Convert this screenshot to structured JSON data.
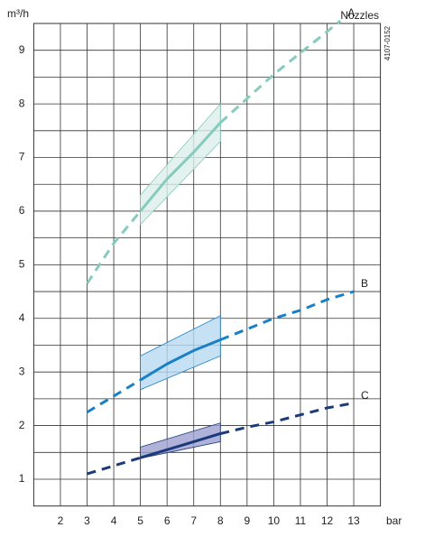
{
  "chart_data": {
    "type": "line",
    "y_label": "m³/h",
    "x_label": "bar",
    "legend_title": "Nozzles",
    "figure_id": "4107-0152",
    "xlim": [
      1,
      14
    ],
    "ylim": [
      0.5,
      9.5
    ],
    "xticks": [
      2,
      3,
      4,
      5,
      6,
      7,
      8,
      9,
      10,
      11,
      12,
      13
    ],
    "yticks": [
      1,
      2,
      3,
      4,
      5,
      6,
      7,
      8,
      9
    ],
    "y_minor_ticks": [
      1.5,
      2.5,
      3.5,
      4.5,
      5.5,
      6.5,
      7.5,
      8.5
    ],
    "grid": true,
    "series": [
      {
        "name": "A",
        "color": "#86cbbd",
        "band_fill": "#dcefea",
        "x": [
          3,
          4,
          5,
          6,
          7,
          8,
          9,
          10,
          11,
          12,
          12.5
        ],
        "values": [
          4.65,
          5.4,
          6.0,
          6.6,
          7.1,
          7.65,
          8.1,
          8.55,
          8.95,
          9.35,
          9.55
        ],
        "band_x": [
          5,
          8
        ],
        "band_lower": [
          5.75,
          7.3
        ],
        "band_upper": [
          6.3,
          8.0
        ]
      },
      {
        "name": "B",
        "color": "#1a80c6",
        "band_fill": "#b9d9f1",
        "x": [
          3,
          4,
          5,
          6,
          7,
          8,
          9,
          10,
          11,
          12,
          13
        ],
        "values": [
          2.25,
          2.55,
          2.85,
          3.15,
          3.4,
          3.6,
          3.8,
          4.0,
          4.15,
          4.35,
          4.5
        ],
        "band_x": [
          5,
          8
        ],
        "band_lower": [
          2.67,
          3.3
        ],
        "band_upper": [
          3.3,
          4.05
        ]
      },
      {
        "name": "C",
        "color": "#1b3a7a",
        "band_fill": "#9d9fd0",
        "x": [
          3,
          4,
          5,
          6,
          7,
          8,
          9,
          10,
          11,
          12,
          13
        ],
        "values": [
          1.1,
          1.25,
          1.4,
          1.55,
          1.7,
          1.85,
          1.97,
          2.07,
          2.2,
          2.33,
          2.42
        ],
        "band_x": [
          5,
          8
        ],
        "band_lower": [
          1.39,
          1.7
        ],
        "band_upper": [
          1.6,
          2.05
        ]
      }
    ]
  }
}
